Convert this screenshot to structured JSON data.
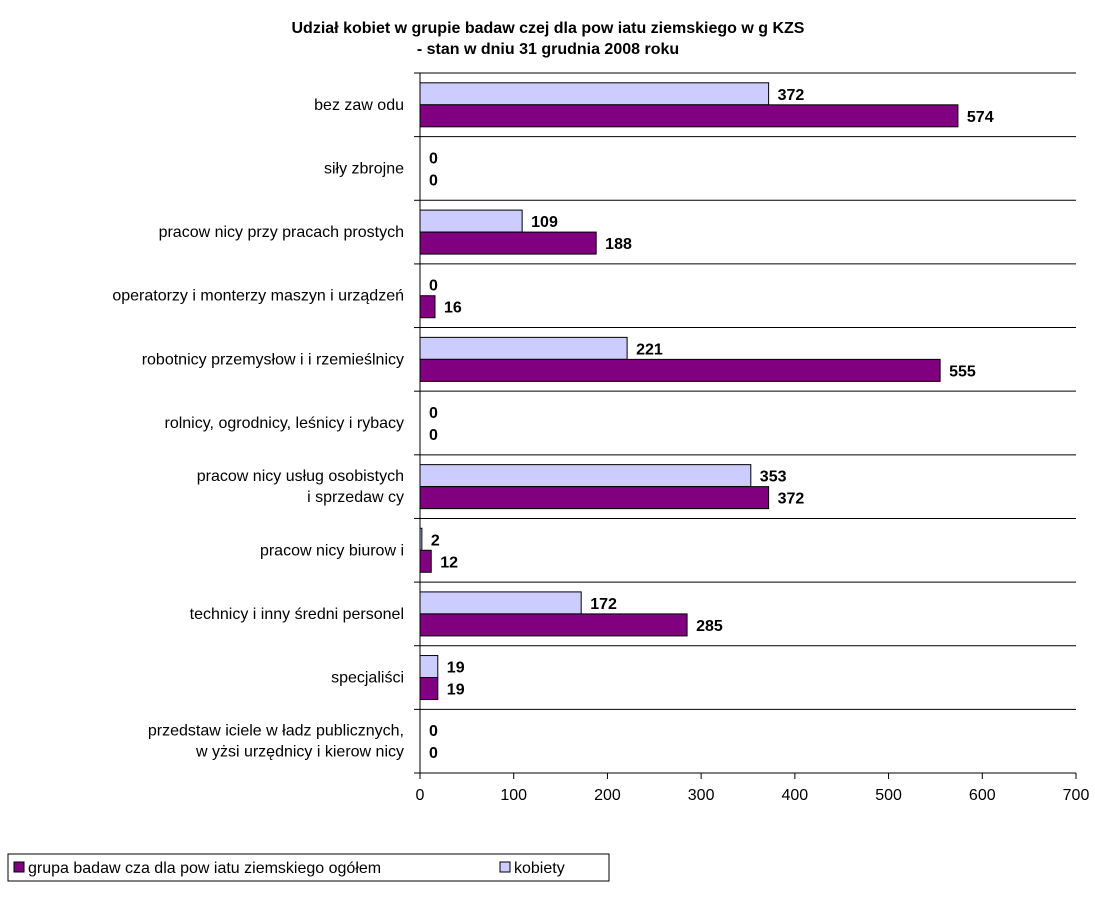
{
  "chart_data": {
    "type": "bar",
    "orientation": "horizontal",
    "title": [
      "Udział kobiet w grupie badaw czej dla pow iatu ziemskiego w g KZS",
      "- stan w dniu 31 grudnia 2008 roku"
    ],
    "categories": [
      [
        "bez zaw odu"
      ],
      [
        "siły zbrojne"
      ],
      [
        "pracow nicy przy pracach prostych"
      ],
      [
        "operatorzy i monterzy maszyn i urządzeń"
      ],
      [
        "robotnicy przemysłow i i rzemieślnicy"
      ],
      [
        "rolnicy, ogrodnicy, leśnicy i rybacy"
      ],
      [
        "pracow nicy usług osobistych",
        "i sprzedaw cy"
      ],
      [
        "pracow nicy biurow i"
      ],
      [
        "technicy i inny średni personel"
      ],
      [
        "specjaliści"
      ],
      [
        "przedstaw iciele w ładz publicznych,",
        "w yżsi urzędnicy i kierow nicy"
      ]
    ],
    "series": [
      {
        "name": "grupa badaw cza dla pow iatu ziemskiego ogółem",
        "color": "#800080",
        "values": [
          574,
          0,
          188,
          16,
          555,
          0,
          372,
          12,
          285,
          19,
          0
        ]
      },
      {
        "name": "kobiety",
        "color": "#ccccff",
        "values": [
          372,
          0,
          109,
          0,
          221,
          0,
          353,
          2,
          172,
          19,
          0
        ]
      }
    ],
    "xticks": [
      "0",
      "100",
      "200",
      "300",
      "400",
      "500",
      "600",
      "700"
    ],
    "xlim": [
      0,
      700
    ],
    "grid": "horizontal category separators",
    "legend_position": "bottom-left"
  }
}
